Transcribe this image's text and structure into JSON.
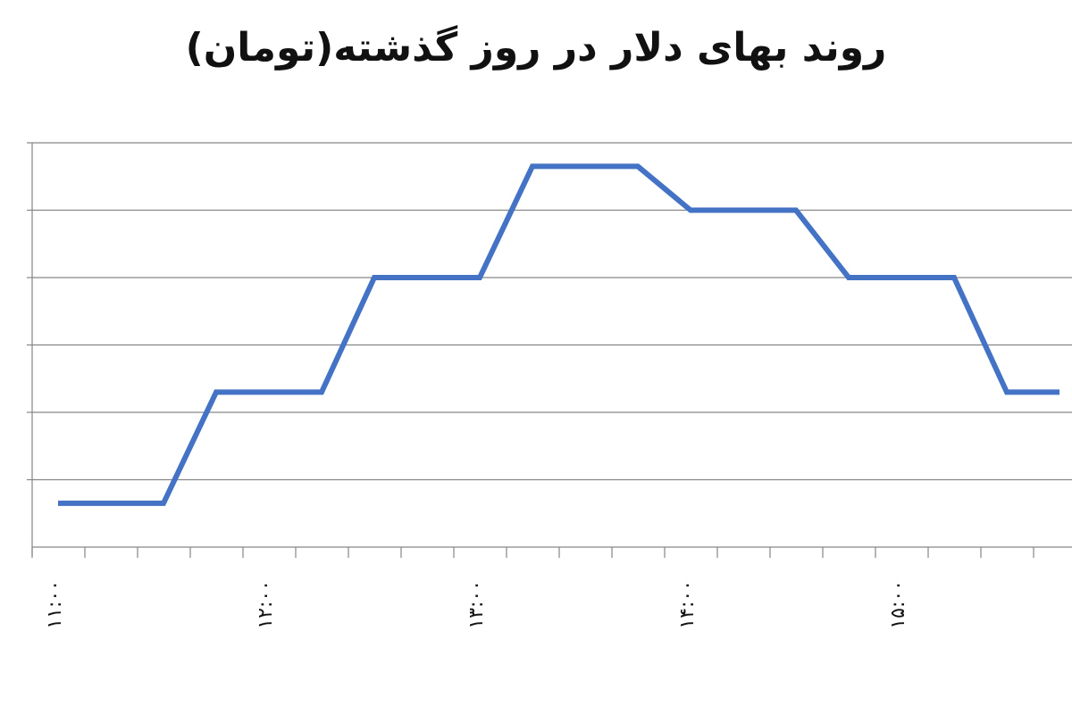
{
  "chart_data": {
    "type": "line",
    "title": "روند بهای دلار در روز گذشته(تومان)",
    "xlabel": "",
    "ylabel": "",
    "x_tick_labels": [
      "۱۱:۰۰",
      "۱۲:۰۰",
      "۱۳:۰۰",
      "۱۴:۰۰",
      "۱۵:۰۰"
    ],
    "grid": true,
    "legend": "none",
    "y_range": [
      0,
      6
    ],
    "series": [
      {
        "color": "#4472C4",
        "values": [
          0.65,
          0.65,
          0.65,
          2.3,
          2.3,
          2.3,
          4.0,
          4.0,
          4.0,
          5.65,
          5.65,
          5.65,
          5.0,
          5.0,
          5.0,
          4.0,
          4.0,
          4.0,
          2.3,
          2.3
        ]
      }
    ]
  },
  "colors": {
    "line": "#4472C4",
    "grid": "#868686",
    "axis": "#868686"
  }
}
